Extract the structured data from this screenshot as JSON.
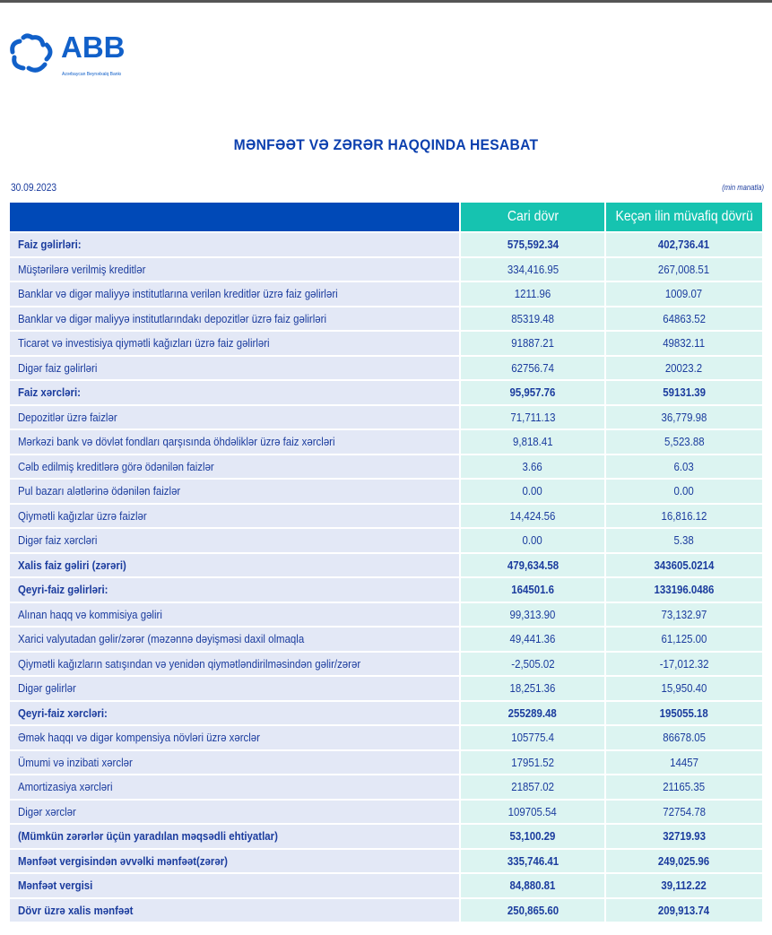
{
  "logo": {
    "name": "ABB",
    "tagline": "Azərbaycan Beynəlxalq Bankı",
    "color": "#1160c9"
  },
  "title": "MƏNFƏƏT VƏ ZƏRƏR HAQQINDA HESABAT",
  "date": "30.09.2023",
  "unit": "(min manatla)",
  "columns": [
    "Cari dövr",
    "Keçən ilin müvafiq dövrü"
  ],
  "colors": {
    "header_blue": "#0049b7",
    "header_teal": "#16c3b0",
    "text": "#1b3c9e"
  },
  "rows": [
    {
      "label": "Faiz gəlirləri:",
      "current": "575,592.34",
      "previous": "402,736.41",
      "bold": true
    },
    {
      "label": "Müştərilərə verilmiş kreditlər",
      "current": "334,416.95",
      "previous": "267,008.51",
      "bold": false
    },
    {
      "label": "Banklar və digər maliyyə institutlarına verilən kreditlər üzrə faiz gəlirləri",
      "current": "1211.96",
      "previous": "1009.07",
      "bold": false
    },
    {
      "label": "Banklar və digər maliyyə institutlarındakı depozitlər üzrə faiz gəlirləri",
      "current": "85319.48",
      "previous": "64863.52",
      "bold": false
    },
    {
      "label": "Ticarət və investisiya qiymətli kağızları üzrə faiz gəlirləri",
      "current": "91887.21",
      "previous": "49832.11",
      "bold": false
    },
    {
      "label": "Digər faiz gəlirləri",
      "current": "62756.74",
      "previous": "20023.2",
      "bold": false
    },
    {
      "label": "Faiz xərcləri:",
      "current": "95,957.76",
      "previous": "59131.39",
      "bold": true
    },
    {
      "label": "Depozitlər üzrə faizlər",
      "current": "71,711.13",
      "previous": "36,779.98",
      "bold": false
    },
    {
      "label": "Mərkəzi bank və dövlət fondları qarşısında öhdəliklər üzrə faiz xərcləri",
      "current": "9,818.41",
      "previous": "5,523.88",
      "bold": false
    },
    {
      "label": "Cəlb edilmiş kreditlərə görə ödənilən faizlər",
      "current": "3.66",
      "previous": "6.03",
      "bold": false
    },
    {
      "label": "Pul bazarı alətlərinə ödənilən faizlər",
      "current": "0.00",
      "previous": "0.00",
      "bold": false
    },
    {
      "label": "Qiymətli kağızlar üzrə faizlər",
      "current": "14,424.56",
      "previous": "16,816.12",
      "bold": false
    },
    {
      "label": "Digər faiz xərcləri",
      "current": "0.00",
      "previous": "5.38",
      "bold": false
    },
    {
      "label": "Xalis faiz gəliri (zərəri)",
      "current": "479,634.58",
      "previous": "343605.0214",
      "bold": true
    },
    {
      "label": "Qeyri-faiz gəlirləri:",
      "current": "164501.6",
      "previous": "133196.0486",
      "bold": true
    },
    {
      "label": "Alınan haqq və kommisiya gəliri",
      "current": "99,313.90",
      "previous": "73,132.97",
      "bold": false
    },
    {
      "label": "Xarici valyutadan gəlir/zərər (məzənnə dəyişməsi daxil olmaqla",
      "current": "49,441.36",
      "previous": "61,125.00",
      "bold": false
    },
    {
      "label": "Qiymətli kağızların satışından və yenidən qiymətləndirilməsindən gəlir/zərər",
      "current": "-2,505.02",
      "previous": "-17,012.32",
      "bold": false
    },
    {
      "label": "Digər gəlirlər",
      "current": "18,251.36",
      "previous": "15,950.40",
      "bold": false
    },
    {
      "label": "Qeyri-faiz xərcləri:",
      "current": "255289.48",
      "previous": "195055.18",
      "bold": true
    },
    {
      "label": "Əmək haqqı və digər kompensiya növləri üzrə xərclər",
      "current": "105775.4",
      "previous": "86678.05",
      "bold": false
    },
    {
      "label": "Ümumi və inzibati xərclər",
      "current": "17951.52",
      "previous": "14457",
      "bold": false
    },
    {
      "label": "Amortizasiya xərcləri",
      "current": "21857.02",
      "previous": "21165.35",
      "bold": false
    },
    {
      "label": "Digər xərclər",
      "current": "109705.54",
      "previous": "72754.78",
      "bold": false
    },
    {
      "label": "(Mümkün zərərlər üçün yaradılan məqsədli ehtiyatlar)",
      "current": "53,100.29",
      "previous": "32719.93",
      "bold": true
    },
    {
      "label": "Mənfəət vergisindən əvvəlki mənfəət(zərər)",
      "current": "335,746.41",
      "previous": "249,025.96",
      "bold": true
    },
    {
      "label": "Mənfəət vergisi",
      "current": "84,880.81",
      "previous": "39,112.22",
      "bold": true
    },
    {
      "label": "Dövr üzrə xalis mənfəət",
      "current": "250,865.60",
      "previous": "209,913.74",
      "bold": true
    }
  ]
}
